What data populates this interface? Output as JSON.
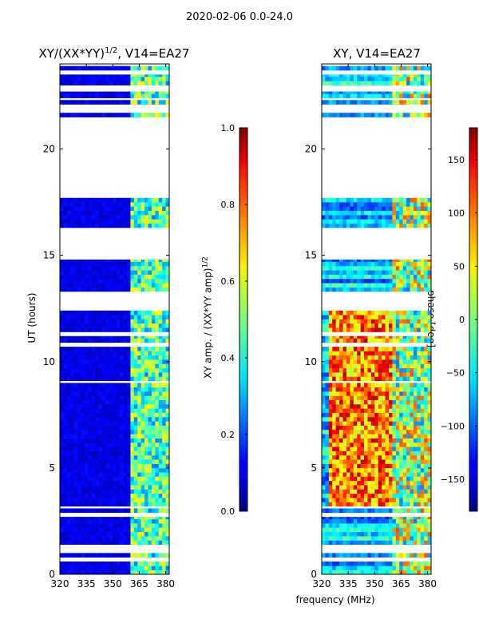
{
  "page": {
    "suptitle": "2020-02-06 0.0-24.0"
  },
  "colors": {
    "axis": "#000000",
    "empty": "#ffffff",
    "colormap": "jet"
  },
  "chart_data": [
    {
      "type": "heatmap",
      "title_main": "XY/(XX*YY)",
      "title_sup": "1/2",
      "title_rest": ", V14=EA27",
      "xlabel": "",
      "ylabel": "UT (hours)",
      "xlim": [
        320,
        382
      ],
      "ylim": [
        0,
        24
      ],
      "xticks": [
        "320",
        "335",
        "350",
        "365",
        "380"
      ],
      "xtick_values": [
        320,
        335,
        350,
        365,
        380
      ],
      "yticks": [
        "0",
        "5",
        "10",
        "15",
        "20"
      ],
      "ytick_values": [
        0,
        5,
        10,
        15,
        20
      ],
      "colorbar": {
        "label_main": "XY amp. / (XX*YY amp)",
        "label_sup": "1/2",
        "range": [
          0.0,
          1.0
        ],
        "ticks": [
          "0.0",
          "0.2",
          "0.4",
          "0.6",
          "0.8",
          "1.0"
        ],
        "tick_values": [
          0.0,
          0.2,
          0.4,
          0.6,
          0.8,
          1.0
        ]
      }
    },
    {
      "type": "heatmap",
      "title_main": "XY, V14=EA27",
      "title_sup": "",
      "title_rest": "",
      "xlabel": "frequency (MHz)",
      "ylabel": "",
      "xlim": [
        320,
        382
      ],
      "ylim": [
        0,
        24
      ],
      "xticks": [
        "320",
        "335",
        "350",
        "365",
        "380"
      ],
      "xtick_values": [
        320,
        335,
        350,
        365,
        380
      ],
      "yticks": [
        "0",
        "5",
        "10",
        "15",
        "20"
      ],
      "ytick_values": [
        0,
        5,
        10,
        15,
        20
      ],
      "colorbar": {
        "label_main": "phase [deg]",
        "label_sup": "",
        "range": [
          -180,
          180
        ],
        "ticks": [
          "−150",
          "−100",
          "−50",
          "0",
          "50",
          "100",
          "150"
        ],
        "tick_values": [
          -150,
          -100,
          -50,
          0,
          50,
          100,
          150
        ]
      }
    }
  ],
  "observations": {
    "data_hours": [
      [
        0.0,
        0.6
      ],
      [
        0.8,
        1.0
      ],
      [
        1.4,
        2.7
      ],
      [
        2.9,
        3.1
      ],
      [
        3.2,
        9.0
      ],
      [
        9.1,
        10.7
      ],
      [
        10.9,
        11.2
      ],
      [
        11.4,
        12.4
      ],
      [
        13.3,
        14.8
      ],
      [
        16.3,
        16.9
      ],
      [
        16.9,
        17.7
      ],
      [
        21.5,
        21.7
      ],
      [
        22.1,
        22.3
      ],
      [
        22.4,
        22.7
      ],
      [
        23.0,
        23.5
      ],
      [
        23.7,
        23.9
      ]
    ],
    "rfi_band_mhz": [
      361,
      382
    ],
    "phase_warm_band_mhz": [
      325,
      360
    ]
  }
}
